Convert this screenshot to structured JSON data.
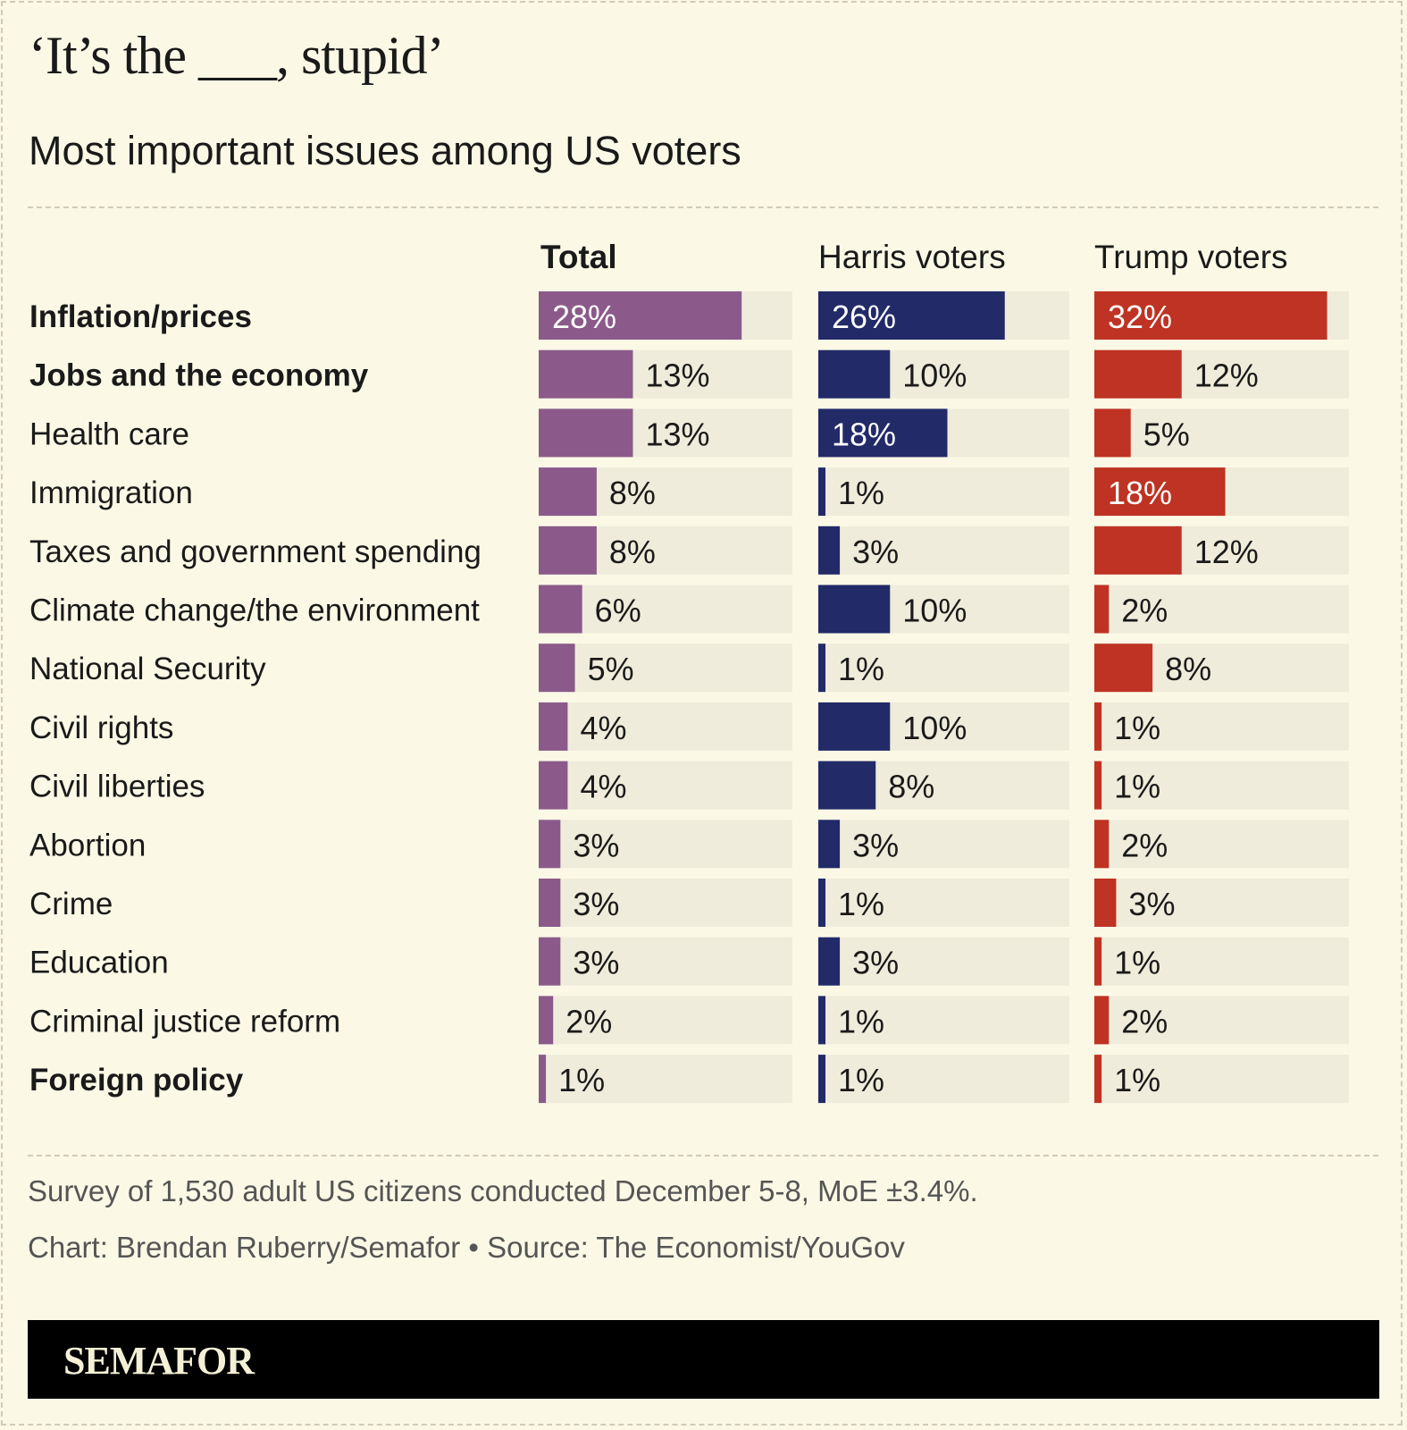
{
  "title": "‘It’s the ___, stupid’",
  "subtitle": "Most important issues among US voters",
  "chart_data": {
    "type": "bar",
    "orientation": "horizontal",
    "xlim": [
      0,
      35
    ],
    "value_suffix": "%",
    "categories": [
      "Inflation/prices",
      "Jobs and the economy",
      "Health care",
      "Immigration",
      "Taxes and government spending",
      "Climate change/the environment",
      "National Security",
      "Civil rights",
      "Civil liberties",
      "Abortion",
      "Crime",
      "Education",
      "Criminal justice reform",
      "Foreign policy"
    ],
    "bold_categories": [
      "Inflation/prices",
      "Jobs and the economy",
      "Foreign policy"
    ],
    "series": [
      {
        "name": "Total",
        "color": "#8b5a8a",
        "bold": true,
        "values": [
          28,
          13,
          13,
          8,
          8,
          6,
          5,
          4,
          4,
          3,
          3,
          3,
          2,
          1
        ]
      },
      {
        "name": "Harris voters",
        "color": "#222a68",
        "values": [
          26,
          10,
          18,
          1,
          3,
          10,
          1,
          10,
          8,
          3,
          1,
          3,
          1,
          1
        ]
      },
      {
        "name": "Trump voters",
        "color": "#be3323",
        "values": [
          32,
          12,
          5,
          18,
          12,
          2,
          8,
          1,
          1,
          2,
          3,
          1,
          2,
          1
        ]
      }
    ],
    "track_color": "#efecdb"
  },
  "notes": {
    "survey": "Survey of 1,530 adult US citizens conducted December 5-8, MoE ±3.4%.",
    "credit": "Chart: Brendan Ruberry/Semafor • Source: The Economist/YouGov"
  },
  "logo": "SEMAFOR"
}
